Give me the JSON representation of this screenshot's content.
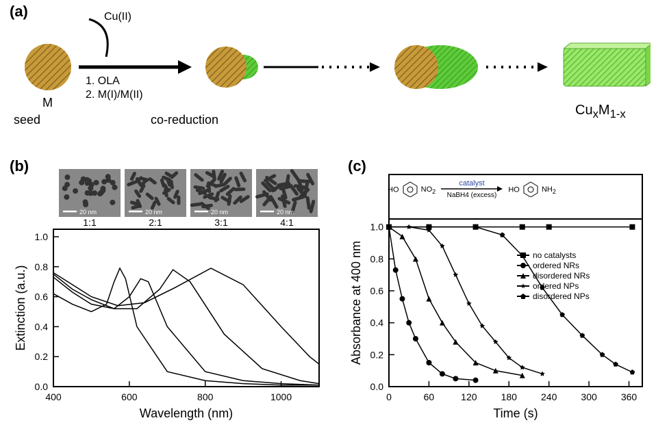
{
  "panel_labels": {
    "a": "(a)",
    "b": "(b)",
    "c": "(c)"
  },
  "panel_a": {
    "cu_label": "Cu(II)",
    "step1": "1. OLA",
    "step2": "2. M(I)/M(II)",
    "seed_label": "M",
    "seed_sub": "seed",
    "middle": "co-reduction",
    "product": "Cu",
    "product_sub": "x",
    "product2": "M",
    "product2_sub": "1-x",
    "seed_color": "#c99a3a",
    "seed_hatch": "#8a6a20",
    "growth_color": "#5ecc3a",
    "arrow_color": "#000000"
  },
  "panel_b": {
    "xlabel": "Wavelength (nm)",
    "ylabel": "Extinction (a.u.)",
    "xlim": [
      400,
      1100
    ],
    "ylim": [
      0.0,
      1.05
    ],
    "xticks": [
      400,
      600,
      800,
      1000
    ],
    "yticks": [
      0.0,
      0.2,
      0.4,
      0.6,
      0.8,
      1.0
    ],
    "tick_fontsize": 14,
    "label_fontsize": 18,
    "line_color": "#000000",
    "line_width": 1.5,
    "tem_ratios": [
      "1:1",
      "2:1",
      "3:1",
      "4:1"
    ],
    "scale_bar_text": "20 nm",
    "series": [
      {
        "x": [
          400,
          450,
          500,
          540,
          560,
          575,
          590,
          620,
          700,
          800,
          900,
          1000,
          1100
        ],
        "y": [
          0.62,
          0.55,
          0.5,
          0.55,
          0.7,
          0.79,
          0.72,
          0.4,
          0.1,
          0.04,
          0.02,
          0.01,
          0.01
        ]
      },
      {
        "x": [
          400,
          450,
          500,
          560,
          600,
          630,
          650,
          700,
          800,
          900,
          1000,
          1100
        ],
        "y": [
          0.73,
          0.63,
          0.55,
          0.52,
          0.6,
          0.72,
          0.7,
          0.4,
          0.1,
          0.04,
          0.02,
          0.01
        ]
      },
      {
        "x": [
          400,
          450,
          500,
          560,
          620,
          680,
          715,
          760,
          850,
          950,
          1050,
          1100
        ],
        "y": [
          0.75,
          0.65,
          0.58,
          0.52,
          0.52,
          0.65,
          0.78,
          0.7,
          0.35,
          0.12,
          0.04,
          0.02
        ]
      },
      {
        "x": [
          400,
          450,
          500,
          570,
          640,
          720,
          815,
          900,
          1000,
          1075,
          1100
        ],
        "y": [
          0.76,
          0.68,
          0.6,
          0.54,
          0.56,
          0.66,
          0.79,
          0.68,
          0.4,
          0.2,
          0.15
        ]
      }
    ]
  },
  "panel_c": {
    "xlabel": "Time (s)",
    "ylabel": "Absorbance at 400 nm",
    "xlim": [
      0,
      380
    ],
    "ylim": [
      0.0,
      1.05
    ],
    "xticks": [
      0,
      60,
      120,
      180,
      240,
      300,
      360
    ],
    "yticks": [
      0.0,
      0.2,
      0.4,
      0.6,
      0.8,
      1.0
    ],
    "tick_fontsize": 14,
    "label_fontsize": 18,
    "line_color": "#000000",
    "line_width": 1.5,
    "reaction": {
      "left1": "HO",
      "left2": "NO",
      "left2_sub": "2",
      "cat": "catalyst",
      "bottom": "NaBH",
      "bottom_sub": "4",
      "bottom_extra": " (excess)",
      "right1": "HO",
      "right2": "NH",
      "right2_sub": "2"
    },
    "legend": [
      {
        "label": "no catalysts",
        "marker": "square"
      },
      {
        "label": "ordered NRs",
        "marker": "circle"
      },
      {
        "label": "disordered NRs",
        "marker": "triangle"
      },
      {
        "label": "ordered NPs",
        "marker": "star"
      },
      {
        "label": "disordered NPs",
        "marker": "pentagon"
      }
    ],
    "series": [
      {
        "marker": "square",
        "x": [
          0,
          60,
          130,
          200,
          240,
          365
        ],
        "y": [
          1.0,
          1.0,
          1.0,
          1.0,
          1.0,
          1.0
        ]
      },
      {
        "marker": "circle",
        "x": [
          0,
          10,
          20,
          30,
          40,
          60,
          80,
          100,
          130
        ],
        "y": [
          1.0,
          0.73,
          0.55,
          0.4,
          0.3,
          0.15,
          0.08,
          0.05,
          0.04
        ]
      },
      {
        "marker": "triangle",
        "x": [
          0,
          20,
          40,
          60,
          80,
          100,
          130,
          160,
          200
        ],
        "y": [
          1.0,
          0.94,
          0.8,
          0.55,
          0.4,
          0.28,
          0.15,
          0.1,
          0.07
        ]
      },
      {
        "marker": "star",
        "x": [
          0,
          30,
          60,
          80,
          100,
          120,
          140,
          160,
          180,
          200,
          230
        ],
        "y": [
          1.0,
          1.0,
          0.98,
          0.88,
          0.7,
          0.52,
          0.38,
          0.28,
          0.18,
          0.12,
          0.08
        ]
      },
      {
        "marker": "pentagon",
        "x": [
          0,
          130,
          170,
          200,
          230,
          260,
          290,
          320,
          340,
          365
        ],
        "y": [
          1.0,
          1.0,
          0.95,
          0.82,
          0.62,
          0.45,
          0.32,
          0.2,
          0.14,
          0.09
        ]
      }
    ]
  },
  "colors": {
    "bg": "#ffffff",
    "fg": "#000000",
    "axis": "#000000",
    "tem_bg": "#888888",
    "tem_particle": "#333333"
  }
}
